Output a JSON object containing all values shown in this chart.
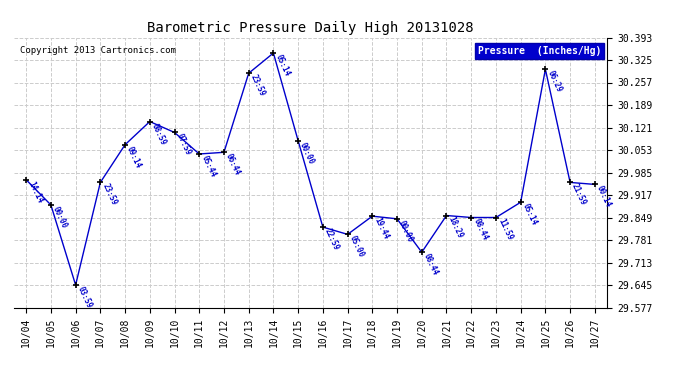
{
  "title": "Barometric Pressure Daily High 20131028",
  "copyright": "Copyright 2013 Cartronics.com",
  "legend_label": "Pressure  (Inches/Hg)",
  "background_color": "#ffffff",
  "plot_bg_color": "#ffffff",
  "line_color": "#0000cc",
  "marker_color": "#000000",
  "label_color": "#0000cc",
  "grid_color": "#cccccc",
  "ylim": [
    29.577,
    30.393
  ],
  "yticks": [
    29.577,
    29.645,
    29.713,
    29.781,
    29.849,
    29.917,
    29.985,
    30.053,
    30.121,
    30.189,
    30.257,
    30.325,
    30.393
  ],
  "data_points": [
    {
      "x": 0,
      "date": "10/04",
      "pressure": 29.963,
      "time": "14:14"
    },
    {
      "x": 1,
      "date": "10/05",
      "pressure": 29.887,
      "time": "00:00"
    },
    {
      "x": 2,
      "date": "10/06",
      "pressure": 29.645,
      "time": "03:59"
    },
    {
      "x": 3,
      "date": "10/07",
      "pressure": 29.955,
      "time": "23:59"
    },
    {
      "x": 4,
      "date": "10/08",
      "pressure": 30.069,
      "time": "09:14"
    },
    {
      "x": 5,
      "date": "10/09",
      "pressure": 30.139,
      "time": "08:59"
    },
    {
      "x": 6,
      "date": "10/10",
      "pressure": 30.106,
      "time": "07:59"
    },
    {
      "x": 7,
      "date": "10/11",
      "pressure": 30.041,
      "time": "05:44"
    },
    {
      "x": 8,
      "date": "10/12",
      "pressure": 30.046,
      "time": "06:44"
    },
    {
      "x": 9,
      "date": "10/13",
      "pressure": 30.285,
      "time": "23:59"
    },
    {
      "x": 10,
      "date": "10/14",
      "pressure": 30.346,
      "time": "05:14"
    },
    {
      "x": 11,
      "date": "10/15",
      "pressure": 30.081,
      "time": "00:00"
    },
    {
      "x": 12,
      "date": "10/16",
      "pressure": 29.82,
      "time": "22:59"
    },
    {
      "x": 13,
      "date": "10/17",
      "pressure": 29.798,
      "time": "05:00"
    },
    {
      "x": 14,
      "date": "10/18",
      "pressure": 29.853,
      "time": "19:44"
    },
    {
      "x": 15,
      "date": "10/19",
      "pressure": 29.845,
      "time": "00:00"
    },
    {
      "x": 16,
      "date": "10/20",
      "pressure": 29.744,
      "time": "08:44"
    },
    {
      "x": 17,
      "date": "10/21",
      "pressure": 29.855,
      "time": "18:29"
    },
    {
      "x": 18,
      "date": "10/22",
      "pressure": 29.849,
      "time": "08:44"
    },
    {
      "x": 19,
      "date": "10/23",
      "pressure": 29.849,
      "time": "11:59"
    },
    {
      "x": 20,
      "date": "10/24",
      "pressure": 29.895,
      "time": "05:14"
    },
    {
      "x": 21,
      "date": "10/25",
      "pressure": 30.297,
      "time": "06:29"
    },
    {
      "x": 22,
      "date": "10/26",
      "pressure": 29.955,
      "time": "21:59"
    },
    {
      "x": 23,
      "date": "10/27",
      "pressure": 29.949,
      "time": "00:14"
    }
  ]
}
